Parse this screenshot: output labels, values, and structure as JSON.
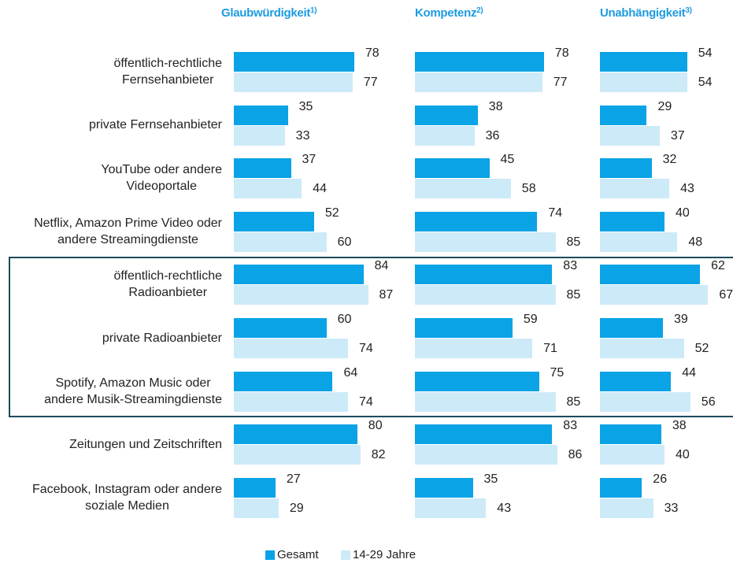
{
  "chart_data": {
    "type": "bar",
    "orientation": "horizontal",
    "categories": [
      "öffentlich-rechtliche\nFernsehanbieter",
      "private Fernsehanbieter",
      "YouTube oder andere\nVideoportale",
      "Netflix, Amazon Prime Video oder\nandere Streamingdienste",
      "öffentlich-rechtliche\nRadioanbieter",
      "private Radioanbieter",
      "Spotify, Amazon Music oder\nandere Musik-Streamingdienste",
      "Zeitungen und Zeitschriften",
      "Facebook, Instagram oder andere\nsoziale Medien"
    ],
    "series": [
      {
        "name": "Gesamt",
        "color": "#0aa3e6"
      },
      {
        "name": "14-29 Jahre",
        "color": "#cdeaf8"
      }
    ],
    "highlight_rows": [
      4,
      5,
      6
    ],
    "panels": [
      {
        "title": "Glaubwürdigkeit",
        "note": "1)",
        "xlim": [
          0,
          100
        ],
        "values": [
          [
            78,
            35,
            37,
            52,
            84,
            60,
            64,
            80,
            27
          ],
          [
            77,
            33,
            44,
            60,
            87,
            74,
            74,
            82,
            29
          ]
        ]
      },
      {
        "title": "Kompetenz",
        "note": "2)",
        "xlim": [
          0,
          100
        ],
        "values": [
          [
            78,
            38,
            45,
            74,
            83,
            59,
            75,
            83,
            35
          ],
          [
            77,
            36,
            58,
            85,
            85,
            71,
            85,
            86,
            43
          ]
        ]
      },
      {
        "title": "Unabhängigkeit",
        "note": "3)",
        "xlim": [
          0,
          100
        ],
        "values": [
          [
            54,
            29,
            32,
            40,
            62,
            39,
            44,
            38,
            26
          ],
          [
            54,
            37,
            43,
            48,
            67,
            52,
            56,
            40,
            33
          ]
        ]
      }
    ]
  }
}
